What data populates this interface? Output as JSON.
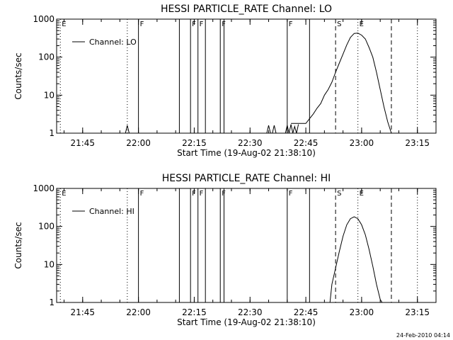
{
  "footer": {
    "timestamp": "24-Feb-2010 04:14"
  },
  "chart_data": [
    {
      "type": "line",
      "title": "HESSI PARTICLE_RATE Channel: LO",
      "xlabel": "Start Time (19-Aug-02 21:38:10)",
      "ylabel": "Counts/sec",
      "yscale": "log",
      "ylim": [
        1,
        1000
      ],
      "xlim": [
        "21:38",
        "23:20"
      ],
      "x_ticks": [
        "21:45",
        "22:00",
        "22:15",
        "22:30",
        "22:45",
        "23:00",
        "23:15"
      ],
      "y_ticks": [
        "1",
        "10",
        "100",
        "1000"
      ],
      "legend": {
        "entries": [
          "Channel: LO"
        ],
        "position": "top-left"
      },
      "grid": false,
      "vertical_markers": [
        {
          "time": "21:39",
          "style": "dotted",
          "label": "E"
        },
        {
          "time": "21:57",
          "style": "dotted",
          "label": ""
        },
        {
          "time": "22:00",
          "style": "solid",
          "label": "F"
        },
        {
          "time": "22:11",
          "style": "solid",
          "label": ""
        },
        {
          "time": "22:14",
          "style": "solid",
          "label": "F"
        },
        {
          "time": "22:16",
          "style": "solid",
          "label": "F"
        },
        {
          "time": "22:18",
          "style": "solid",
          "label": ""
        },
        {
          "time": "22:22",
          "style": "solid",
          "label": "F"
        },
        {
          "time": "22:23",
          "style": "solid",
          "label": ""
        },
        {
          "time": "22:40",
          "style": "solid",
          "label": "F"
        },
        {
          "time": "22:46",
          "style": "solid",
          "label": ""
        },
        {
          "time": "22:53",
          "style": "dashed",
          "label": "S"
        },
        {
          "time": "22:59",
          "style": "dotted",
          "label": "E"
        },
        {
          "time": "23:08",
          "style": "dashed",
          "label": ""
        },
        {
          "time": "23:15",
          "style": "dotted",
          "label": ""
        }
      ],
      "series": [
        {
          "style": "solid",
          "segments": [
            {
              "x": [
                "21:56.5",
                "21:57",
                "21:57.5"
              ],
              "y": [
                1,
                1.6,
                1
              ]
            },
            {
              "x": [
                "22:34.5",
                "22:35",
                "22:35.5"
              ],
              "y": [
                1,
                1.6,
                1
              ]
            },
            {
              "x": [
                "22:36",
                "22:36.5",
                "22:37"
              ],
              "y": [
                1,
                1.6,
                1
              ]
            },
            {
              "x": [
                "22:39.5",
                "22:40",
                "22:40.5",
                "22:41",
                "22:41.5",
                "22:42",
                "22:42.5",
                "22:43"
              ],
              "y": [
                1,
                1.6,
                1,
                1.7,
                1,
                1.5,
                1,
                1.7
              ]
            },
            {
              "x": [
                "22:41",
                "22:45",
                "22:46",
                "22:47",
                "22:48",
                "22:49",
                "22:50",
                "22:51",
                "22:52",
                "22:53",
                "22:54",
                "22:55",
                "22:56",
                "22:57",
                "22:58",
                "22:59",
                "23:00",
                "23:01",
                "23:02",
                "23:03",
                "23:04",
                "23:05",
                "23:06",
                "23:07",
                "23:08"
              ],
              "y": [
                1.8,
                1.8,
                2.4,
                3.2,
                4.5,
                6,
                10,
                14,
                22,
                40,
                70,
                120,
                210,
                330,
                420,
                430,
                380,
                300,
                180,
                100,
                40,
                14,
                5,
                2,
                1
              ]
            }
          ]
        }
      ]
    },
    {
      "type": "line",
      "title": "HESSI PARTICLE_RATE Channel: HI",
      "xlabel": "Start Time (19-Aug-02 21:38:10)",
      "ylabel": "Counts/sec",
      "yscale": "log",
      "ylim": [
        1,
        1000
      ],
      "xlim": [
        "21:38",
        "23:20"
      ],
      "x_ticks": [
        "21:45",
        "22:00",
        "22:15",
        "22:30",
        "22:45",
        "23:00",
        "23:15"
      ],
      "y_ticks": [
        "1",
        "10",
        "100",
        "1000"
      ],
      "legend": {
        "entries": [
          "Channel: HI"
        ],
        "position": "top-left"
      },
      "grid": false,
      "vertical_markers": [
        {
          "time": "21:39",
          "style": "dotted",
          "label": "E"
        },
        {
          "time": "21:57",
          "style": "dotted",
          "label": ""
        },
        {
          "time": "22:00",
          "style": "solid",
          "label": "F"
        },
        {
          "time": "22:11",
          "style": "solid",
          "label": ""
        },
        {
          "time": "22:14",
          "style": "solid",
          "label": "F"
        },
        {
          "time": "22:16",
          "style": "solid",
          "label": "F"
        },
        {
          "time": "22:18",
          "style": "solid",
          "label": ""
        },
        {
          "time": "22:22",
          "style": "solid",
          "label": "F"
        },
        {
          "time": "22:23",
          "style": "solid",
          "label": ""
        },
        {
          "time": "22:40",
          "style": "solid",
          "label": "F"
        },
        {
          "time": "22:46",
          "style": "solid",
          "label": ""
        },
        {
          "time": "22:53",
          "style": "dashed",
          "label": "S"
        },
        {
          "time": "22:59",
          "style": "dotted",
          "label": "E"
        },
        {
          "time": "23:08",
          "style": "dashed",
          "label": ""
        },
        {
          "time": "23:15",
          "style": "dotted",
          "label": ""
        }
      ],
      "series": [
        {
          "style": "solid",
          "segments": [
            {
              "x": [
                "22:51.5",
                "22:52",
                "22:53",
                "22:54",
                "22:55",
                "22:56",
                "22:57",
                "22:58",
                "22:59",
                "23:00",
                "23:01",
                "23:02",
                "23:03",
                "23:04",
                "23:05",
                "23:05.5"
              ],
              "y": [
                1,
                3,
                8,
                22,
                55,
                110,
                160,
                180,
                160,
                110,
                60,
                25,
                9,
                3,
                1.2,
                1
              ]
            }
          ]
        }
      ]
    }
  ]
}
